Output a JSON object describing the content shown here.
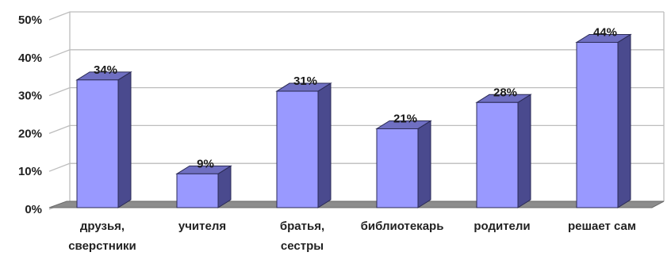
{
  "chart_data": {
    "type": "bar",
    "categories": [
      "друзья, сверстники",
      "учителя",
      "братья, сестры",
      "библиотекарь",
      "родители",
      "решает сам"
    ],
    "category_lines": [
      [
        "друзья,",
        "сверстники"
      ],
      [
        "учителя"
      ],
      [
        "братья,",
        "сестры"
      ],
      [
        "библиотекарь"
      ],
      [
        "родители"
      ],
      [
        "решает сам"
      ]
    ],
    "values": [
      34,
      9,
      31,
      21,
      28,
      44
    ],
    "data_labels": [
      "34%",
      "9%",
      "31%",
      "21%",
      "28%",
      "44%"
    ],
    "y_ticks": [
      "0%",
      "10%",
      "20%",
      "30%",
      "40%",
      "50%"
    ],
    "ylim": [
      0,
      50
    ],
    "grid": true,
    "legend": "none",
    "style": "3d",
    "colors": {
      "bar_front": "#9999ff",
      "bar_side": "#4a4a8e",
      "bar_top": "#6f6fc2",
      "floor": "#8c8c8c",
      "grid": "#bdbdbd"
    }
  }
}
